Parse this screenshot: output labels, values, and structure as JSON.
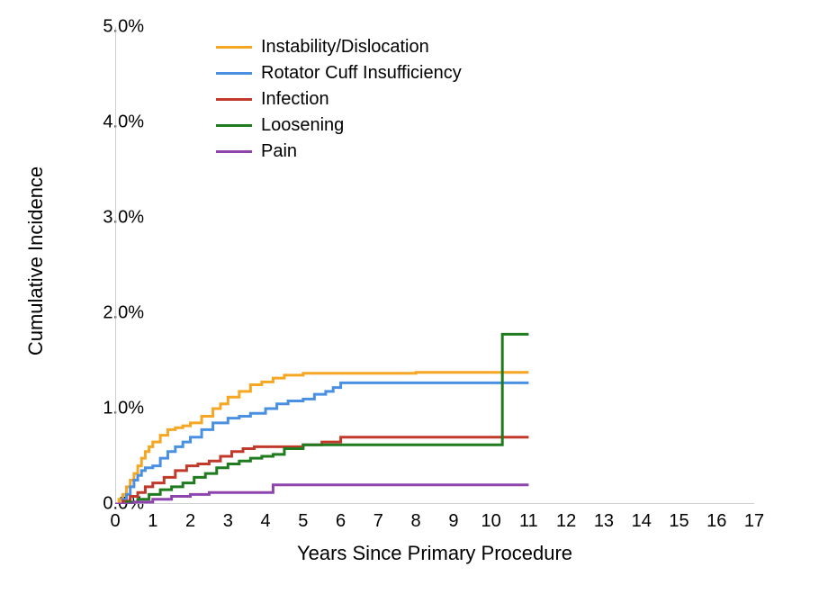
{
  "chart": {
    "type": "step-line",
    "background_color": "#ffffff",
    "axis_color": "#bfbfbf",
    "line_width": 3,
    "x_axis": {
      "title": "Years Since Primary Procedure",
      "min": 0,
      "max": 17,
      "tick_step": 1,
      "ticks": [
        0,
        1,
        2,
        3,
        4,
        5,
        6,
        7,
        8,
        9,
        10,
        11,
        12,
        13,
        14,
        15,
        16,
        17
      ],
      "tick_labels": [
        "0",
        "1",
        "2",
        "3",
        "4",
        "5",
        "6",
        "7",
        "8",
        "9",
        "10",
        "11",
        "12",
        "13",
        "14",
        "15",
        "16",
        "17"
      ],
      "title_fontsize": 22,
      "tick_fontsize": 20
    },
    "y_axis": {
      "title": "Cumulative Incidence",
      "min": 0,
      "max": 5,
      "tick_step": 1,
      "ticks": [
        0,
        1,
        2,
        3,
        4,
        5
      ],
      "tick_labels": [
        "0.0%",
        "1.0%",
        "2.0%",
        "3.0%",
        "4.0%",
        "5.0%"
      ],
      "title_fontsize": 22,
      "tick_fontsize": 20
    },
    "legend": {
      "position": "top-left-inside",
      "fontsize": 20,
      "items": [
        {
          "label": "Instability/Dislocation",
          "color": "#f5a623"
        },
        {
          "label": "Rotator Cuff Insufficiency",
          "color": "#4a90e2"
        },
        {
          "label": "Infection",
          "color": "#c0392b"
        },
        {
          "label": "Loosening",
          "color": "#1e7b1e"
        },
        {
          "label": "Pain",
          "color": "#8e44ad"
        }
      ]
    },
    "series": [
      {
        "name": "Instability/Dislocation",
        "color": "#f5a623",
        "step": "hv",
        "points": [
          [
            0,
            0
          ],
          [
            0.1,
            0.05
          ],
          [
            0.2,
            0.1
          ],
          [
            0.3,
            0.18
          ],
          [
            0.4,
            0.25
          ],
          [
            0.5,
            0.32
          ],
          [
            0.6,
            0.4
          ],
          [
            0.7,
            0.48
          ],
          [
            0.8,
            0.55
          ],
          [
            0.9,
            0.6
          ],
          [
            1.0,
            0.65
          ],
          [
            1.2,
            0.72
          ],
          [
            1.4,
            0.78
          ],
          [
            1.6,
            0.8
          ],
          [
            1.8,
            0.82
          ],
          [
            2.0,
            0.85
          ],
          [
            2.3,
            0.92
          ],
          [
            2.6,
            1.0
          ],
          [
            2.8,
            1.05
          ],
          [
            3.0,
            1.12
          ],
          [
            3.3,
            1.18
          ],
          [
            3.6,
            1.25
          ],
          [
            3.9,
            1.28
          ],
          [
            4.2,
            1.32
          ],
          [
            4.5,
            1.35
          ],
          [
            5.0,
            1.37
          ],
          [
            5.5,
            1.37
          ],
          [
            6.0,
            1.37
          ],
          [
            7.0,
            1.37
          ],
          [
            8.0,
            1.38
          ],
          [
            9.0,
            1.38
          ],
          [
            10.0,
            1.38
          ],
          [
            11.0,
            1.38
          ]
        ]
      },
      {
        "name": "Rotator Cuff Insufficiency",
        "color": "#4a90e2",
        "step": "hv",
        "points": [
          [
            0,
            0
          ],
          [
            0.2,
            0.05
          ],
          [
            0.3,
            0.1
          ],
          [
            0.4,
            0.18
          ],
          [
            0.5,
            0.25
          ],
          [
            0.6,
            0.3
          ],
          [
            0.7,
            0.35
          ],
          [
            0.8,
            0.38
          ],
          [
            1.0,
            0.4
          ],
          [
            1.2,
            0.48
          ],
          [
            1.4,
            0.55
          ],
          [
            1.6,
            0.6
          ],
          [
            1.8,
            0.65
          ],
          [
            2.0,
            0.7
          ],
          [
            2.3,
            0.78
          ],
          [
            2.6,
            0.85
          ],
          [
            3.0,
            0.9
          ],
          [
            3.3,
            0.92
          ],
          [
            3.6,
            0.95
          ],
          [
            4.0,
            1.0
          ],
          [
            4.3,
            1.05
          ],
          [
            4.6,
            1.08
          ],
          [
            5.0,
            1.1
          ],
          [
            5.3,
            1.15
          ],
          [
            5.6,
            1.18
          ],
          [
            5.8,
            1.22
          ],
          [
            6.0,
            1.27
          ],
          [
            7.0,
            1.27
          ],
          [
            8.0,
            1.27
          ],
          [
            9.0,
            1.27
          ],
          [
            10.0,
            1.27
          ],
          [
            11.0,
            1.27
          ]
        ]
      },
      {
        "name": "Infection",
        "color": "#c0392b",
        "step": "hv",
        "points": [
          [
            0,
            0
          ],
          [
            0.2,
            0.03
          ],
          [
            0.4,
            0.08
          ],
          [
            0.6,
            0.12
          ],
          [
            0.8,
            0.18
          ],
          [
            1.0,
            0.22
          ],
          [
            1.3,
            0.28
          ],
          [
            1.6,
            0.35
          ],
          [
            1.9,
            0.4
          ],
          [
            2.2,
            0.42
          ],
          [
            2.5,
            0.45
          ],
          [
            2.8,
            0.5
          ],
          [
            3.1,
            0.55
          ],
          [
            3.4,
            0.58
          ],
          [
            3.7,
            0.6
          ],
          [
            4.0,
            0.6
          ],
          [
            4.5,
            0.6
          ],
          [
            5.0,
            0.62
          ],
          [
            5.5,
            0.65
          ],
          [
            6.0,
            0.7
          ],
          [
            7.0,
            0.7
          ],
          [
            8.0,
            0.7
          ],
          [
            9.0,
            0.7
          ],
          [
            10.0,
            0.7
          ],
          [
            11.0,
            0.7
          ]
        ]
      },
      {
        "name": "Loosening",
        "color": "#1e7b1e",
        "step": "hv",
        "points": [
          [
            0,
            0
          ],
          [
            0.3,
            0.02
          ],
          [
            0.6,
            0.05
          ],
          [
            0.9,
            0.1
          ],
          [
            1.2,
            0.15
          ],
          [
            1.5,
            0.18
          ],
          [
            1.8,
            0.22
          ],
          [
            2.1,
            0.28
          ],
          [
            2.4,
            0.32
          ],
          [
            2.7,
            0.38
          ],
          [
            3.0,
            0.42
          ],
          [
            3.3,
            0.45
          ],
          [
            3.6,
            0.48
          ],
          [
            3.9,
            0.5
          ],
          [
            4.2,
            0.52
          ],
          [
            4.5,
            0.58
          ],
          [
            5.0,
            0.62
          ],
          [
            5.5,
            0.62
          ],
          [
            6.0,
            0.62
          ],
          [
            7.0,
            0.62
          ],
          [
            8.0,
            0.62
          ],
          [
            9.0,
            0.62
          ],
          [
            10.0,
            0.62
          ],
          [
            10.3,
            0.62
          ],
          [
            10.3,
            1.78
          ],
          [
            11.0,
            1.78
          ]
        ]
      },
      {
        "name": "Pain",
        "color": "#8e44ad",
        "step": "hv",
        "points": [
          [
            0,
            0
          ],
          [
            0.5,
            0.02
          ],
          [
            1.0,
            0.05
          ],
          [
            1.5,
            0.08
          ],
          [
            2.0,
            0.1
          ],
          [
            2.5,
            0.12
          ],
          [
            3.0,
            0.12
          ],
          [
            3.5,
            0.12
          ],
          [
            4.0,
            0.12
          ],
          [
            4.2,
            0.2
          ],
          [
            5.0,
            0.2
          ],
          [
            6.0,
            0.2
          ],
          [
            7.0,
            0.2
          ],
          [
            8.0,
            0.2
          ],
          [
            9.0,
            0.2
          ],
          [
            10.0,
            0.2
          ],
          [
            11.0,
            0.2
          ]
        ]
      }
    ]
  }
}
